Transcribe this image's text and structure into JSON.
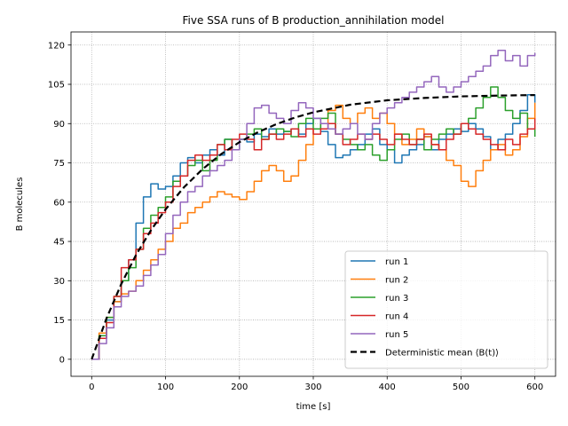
{
  "chart_data": {
    "type": "line",
    "title": "Five SSA runs of B production_annihilation model",
    "xlabel": "time [s]",
    "ylabel": "B molecules",
    "xlim": [
      -28,
      628
    ],
    "ylim": [
      -6.5,
      125
    ],
    "xticks": [
      0,
      100,
      200,
      300,
      400,
      500,
      600
    ],
    "yticks": [
      0,
      15,
      30,
      45,
      60,
      75,
      90,
      105,
      120
    ],
    "grid": true,
    "legend_position": "lower right",
    "series": [
      {
        "name": "run 1",
        "color": "#1f77b4",
        "style": "solid",
        "step": true,
        "points": [
          [
            0,
            0
          ],
          [
            10,
            8
          ],
          [
            20,
            15
          ],
          [
            30,
            22
          ],
          [
            40,
            30
          ],
          [
            50,
            38
          ],
          [
            60,
            52
          ],
          [
            70,
            62
          ],
          [
            80,
            67
          ],
          [
            90,
            65
          ],
          [
            100,
            66
          ],
          [
            110,
            70
          ],
          [
            120,
            75
          ],
          [
            130,
            77
          ],
          [
            140,
            75
          ],
          [
            150,
            78
          ],
          [
            160,
            80
          ],
          [
            170,
            78
          ],
          [
            180,
            84
          ],
          [
            190,
            80
          ],
          [
            200,
            84
          ],
          [
            210,
            83
          ],
          [
            220,
            86
          ],
          [
            230,
            85
          ],
          [
            240,
            88
          ],
          [
            250,
            86
          ],
          [
            260,
            87
          ],
          [
            270,
            88
          ],
          [
            280,
            86
          ],
          [
            290,
            90
          ],
          [
            300,
            92
          ],
          [
            310,
            87
          ],
          [
            320,
            82
          ],
          [
            330,
            77
          ],
          [
            340,
            78
          ],
          [
            350,
            80
          ],
          [
            360,
            82
          ],
          [
            370,
            86
          ],
          [
            380,
            88
          ],
          [
            390,
            82
          ],
          [
            400,
            80
          ],
          [
            410,
            75
          ],
          [
            420,
            78
          ],
          [
            430,
            80
          ],
          [
            440,
            82
          ],
          [
            450,
            85
          ],
          [
            460,
            80
          ],
          [
            470,
            84
          ],
          [
            480,
            86
          ],
          [
            490,
            88
          ],
          [
            500,
            87
          ],
          [
            510,
            90
          ],
          [
            520,
            88
          ],
          [
            530,
            85
          ],
          [
            540,
            80
          ],
          [
            550,
            84
          ],
          [
            560,
            86
          ],
          [
            570,
            90
          ],
          [
            580,
            95
          ],
          [
            590,
            101
          ],
          [
            600,
            98
          ]
        ]
      },
      {
        "name": "run 2",
        "color": "#ff7f0e",
        "style": "solid",
        "step": true,
        "points": [
          [
            0,
            0
          ],
          [
            10,
            10
          ],
          [
            20,
            16
          ],
          [
            30,
            22
          ],
          [
            40,
            25
          ],
          [
            50,
            26
          ],
          [
            60,
            30
          ],
          [
            70,
            34
          ],
          [
            80,
            38
          ],
          [
            90,
            42
          ],
          [
            100,
            45
          ],
          [
            110,
            50
          ],
          [
            120,
            52
          ],
          [
            130,
            56
          ],
          [
            140,
            58
          ],
          [
            150,
            60
          ],
          [
            160,
            62
          ],
          [
            170,
            64
          ],
          [
            180,
            63
          ],
          [
            190,
            62
          ],
          [
            200,
            61
          ],
          [
            210,
            64
          ],
          [
            220,
            68
          ],
          [
            230,
            72
          ],
          [
            240,
            74
          ],
          [
            250,
            72
          ],
          [
            260,
            68
          ],
          [
            270,
            70
          ],
          [
            280,
            76
          ],
          [
            290,
            82
          ],
          [
            300,
            88
          ],
          [
            310,
            90
          ],
          [
            320,
            95
          ],
          [
            330,
            97
          ],
          [
            340,
            92
          ],
          [
            350,
            90
          ],
          [
            360,
            94
          ],
          [
            370,
            96
          ],
          [
            380,
            92
          ],
          [
            390,
            94
          ],
          [
            400,
            90
          ],
          [
            410,
            86
          ],
          [
            420,
            82
          ],
          [
            430,
            84
          ],
          [
            440,
            88
          ],
          [
            450,
            85
          ],
          [
            460,
            82
          ],
          [
            470,
            80
          ],
          [
            480,
            76
          ],
          [
            490,
            74
          ],
          [
            500,
            68
          ],
          [
            510,
            66
          ],
          [
            520,
            72
          ],
          [
            530,
            76
          ],
          [
            540,
            80
          ],
          [
            550,
            82
          ],
          [
            560,
            78
          ],
          [
            570,
            80
          ],
          [
            580,
            85
          ],
          [
            590,
            92
          ],
          [
            600,
            98
          ]
        ]
      },
      {
        "name": "run 3",
        "color": "#2ca02c",
        "style": "solid",
        "step": true,
        "points": [
          [
            0,
            0
          ],
          [
            10,
            9
          ],
          [
            20,
            16
          ],
          [
            30,
            24
          ],
          [
            40,
            30
          ],
          [
            50,
            35
          ],
          [
            60,
            42
          ],
          [
            70,
            50
          ],
          [
            80,
            55
          ],
          [
            90,
            58
          ],
          [
            100,
            62
          ],
          [
            110,
            68
          ],
          [
            120,
            70
          ],
          [
            130,
            74
          ],
          [
            140,
            76
          ],
          [
            150,
            72
          ],
          [
            160,
            76
          ],
          [
            170,
            82
          ],
          [
            180,
            84
          ],
          [
            190,
            80
          ],
          [
            200,
            84
          ],
          [
            210,
            86
          ],
          [
            220,
            88
          ],
          [
            230,
            84
          ],
          [
            240,
            86
          ],
          [
            250,
            88
          ],
          [
            260,
            87
          ],
          [
            270,
            85
          ],
          [
            280,
            90
          ],
          [
            290,
            92
          ],
          [
            300,
            88
          ],
          [
            310,
            92
          ],
          [
            320,
            94
          ],
          [
            330,
            86
          ],
          [
            340,
            84
          ],
          [
            350,
            82
          ],
          [
            360,
            80
          ],
          [
            370,
            82
          ],
          [
            380,
            78
          ],
          [
            390,
            76
          ],
          [
            400,
            80
          ],
          [
            410,
            84
          ],
          [
            420,
            86
          ],
          [
            430,
            82
          ],
          [
            440,
            84
          ],
          [
            450,
            80
          ],
          [
            460,
            84
          ],
          [
            470,
            86
          ],
          [
            480,
            88
          ],
          [
            490,
            86
          ],
          [
            500,
            90
          ],
          [
            510,
            92
          ],
          [
            520,
            96
          ],
          [
            530,
            100
          ],
          [
            540,
            104
          ],
          [
            550,
            100
          ],
          [
            560,
            95
          ],
          [
            570,
            92
          ],
          [
            580,
            94
          ],
          [
            590,
            88
          ],
          [
            600,
            85
          ]
        ]
      },
      {
        "name": "run 4",
        "color": "#d62728",
        "style": "solid",
        "step": true,
        "points": [
          [
            0,
            0
          ],
          [
            10,
            8
          ],
          [
            20,
            14
          ],
          [
            30,
            24
          ],
          [
            40,
            35
          ],
          [
            50,
            38
          ],
          [
            60,
            42
          ],
          [
            70,
            48
          ],
          [
            80,
            52
          ],
          [
            90,
            56
          ],
          [
            100,
            60
          ],
          [
            110,
            66
          ],
          [
            120,
            70
          ],
          [
            130,
            76
          ],
          [
            140,
            78
          ],
          [
            150,
            76
          ],
          [
            160,
            78
          ],
          [
            170,
            82
          ],
          [
            180,
            80
          ],
          [
            190,
            84
          ],
          [
            200,
            86
          ],
          [
            210,
            84
          ],
          [
            220,
            80
          ],
          [
            230,
            84
          ],
          [
            240,
            86
          ],
          [
            250,
            84
          ],
          [
            260,
            86
          ],
          [
            270,
            88
          ],
          [
            280,
            85
          ],
          [
            290,
            88
          ],
          [
            300,
            86
          ],
          [
            310,
            88
          ],
          [
            320,
            90
          ],
          [
            330,
            86
          ],
          [
            340,
            82
          ],
          [
            350,
            84
          ],
          [
            360,
            86
          ],
          [
            370,
            84
          ],
          [
            380,
            86
          ],
          [
            390,
            84
          ],
          [
            400,
            82
          ],
          [
            410,
            86
          ],
          [
            420,
            84
          ],
          [
            430,
            82
          ],
          [
            440,
            84
          ],
          [
            450,
            86
          ],
          [
            460,
            82
          ],
          [
            470,
            80
          ],
          [
            480,
            84
          ],
          [
            490,
            86
          ],
          [
            500,
            90
          ],
          [
            510,
            88
          ],
          [
            520,
            86
          ],
          [
            530,
            84
          ],
          [
            540,
            82
          ],
          [
            550,
            80
          ],
          [
            560,
            84
          ],
          [
            570,
            82
          ],
          [
            580,
            86
          ],
          [
            590,
            88
          ],
          [
            600,
            92
          ]
        ]
      },
      {
        "name": "run 5",
        "color": "#9467bd",
        "style": "solid",
        "step": true,
        "points": [
          [
            0,
            0
          ],
          [
            10,
            6
          ],
          [
            20,
            12
          ],
          [
            30,
            20
          ],
          [
            40,
            24
          ],
          [
            50,
            26
          ],
          [
            60,
            28
          ],
          [
            70,
            32
          ],
          [
            80,
            36
          ],
          [
            90,
            40
          ],
          [
            100,
            48
          ],
          [
            110,
            55
          ],
          [
            120,
            60
          ],
          [
            130,
            64
          ],
          [
            140,
            66
          ],
          [
            150,
            70
          ],
          [
            160,
            72
          ],
          [
            170,
            74
          ],
          [
            180,
            76
          ],
          [
            190,
            80
          ],
          [
            200,
            84
          ],
          [
            210,
            90
          ],
          [
            220,
            96
          ],
          [
            230,
            97
          ],
          [
            240,
            94
          ],
          [
            250,
            92
          ],
          [
            260,
            90
          ],
          [
            270,
            95
          ],
          [
            280,
            98
          ],
          [
            290,
            96
          ],
          [
            300,
            92
          ],
          [
            310,
            90
          ],
          [
            320,
            88
          ],
          [
            330,
            86
          ],
          [
            340,
            88
          ],
          [
            350,
            90
          ],
          [
            360,
            86
          ],
          [
            370,
            84
          ],
          [
            380,
            90
          ],
          [
            390,
            94
          ],
          [
            400,
            96
          ],
          [
            410,
            98
          ],
          [
            420,
            100
          ],
          [
            430,
            102
          ],
          [
            440,
            104
          ],
          [
            450,
            106
          ],
          [
            460,
            108
          ],
          [
            470,
            104
          ],
          [
            480,
            102
          ],
          [
            490,
            104
          ],
          [
            500,
            106
          ],
          [
            510,
            108
          ],
          [
            520,
            110
          ],
          [
            530,
            112
          ],
          [
            540,
            116
          ],
          [
            550,
            118
          ],
          [
            560,
            114
          ],
          [
            570,
            116
          ],
          [
            580,
            112
          ],
          [
            590,
            116
          ],
          [
            600,
            117
          ]
        ]
      },
      {
        "name": "Deterministic mean ⟨B(t)⟩",
        "color": "#000000",
        "style": "dashed",
        "step": false,
        "points": [
          [
            0,
            0
          ],
          [
            20,
            15.6
          ],
          [
            40,
            28.7
          ],
          [
            60,
            39.8
          ],
          [
            80,
            49.2
          ],
          [
            100,
            57.2
          ],
          [
            125,
            65.7
          ],
          [
            150,
            72.6
          ],
          [
            175,
            78.3
          ],
          [
            200,
            82.9
          ],
          [
            225,
            86.7
          ],
          [
            250,
            89.8
          ],
          [
            275,
            92.3
          ],
          [
            300,
            94.3
          ],
          [
            350,
            97.2
          ],
          [
            400,
            98.9
          ],
          [
            450,
            99.8
          ],
          [
            500,
            100.4
          ],
          [
            550,
            100.7
          ],
          [
            600,
            100.9
          ]
        ]
      }
    ]
  }
}
